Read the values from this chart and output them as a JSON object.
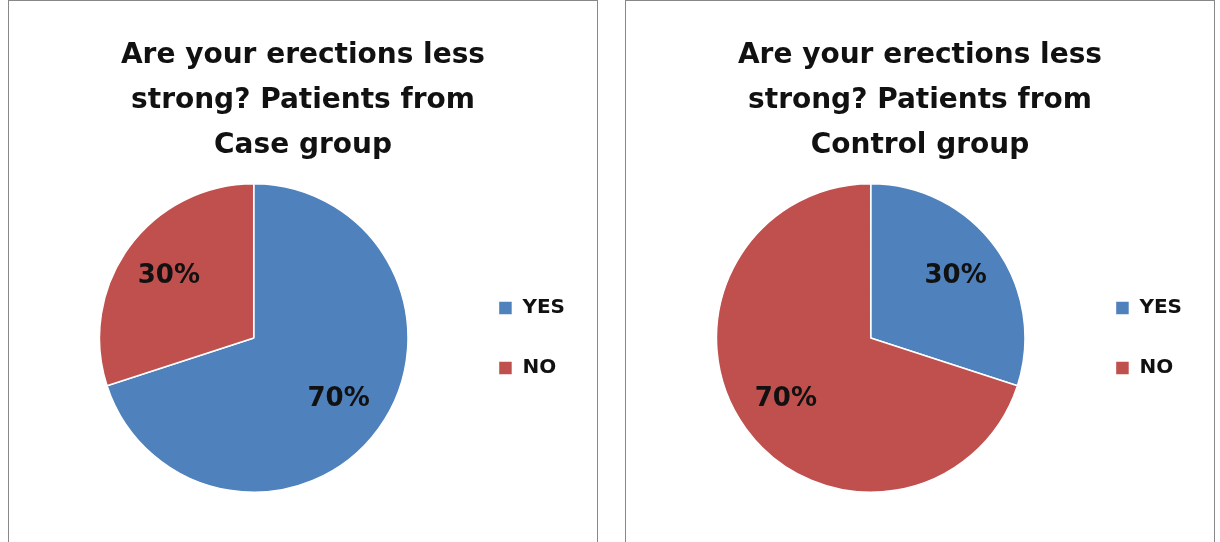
{
  "chart_data": [
    {
      "type": "pie",
      "title": "Are your erections less strong? Patients from Case group",
      "categories": [
        "YES",
        "NO"
      ],
      "values": [
        70,
        30
      ],
      "colors": [
        "#4f81bd",
        "#c0504d"
      ],
      "value_labels": [
        "70%",
        "30%"
      ],
      "legend": "right"
    },
    {
      "type": "pie",
      "title": "Are your erections less strong? Patients from Control group",
      "categories": [
        "YES",
        "NO"
      ],
      "values": [
        30,
        70
      ],
      "colors": [
        "#4f81bd",
        "#c0504d"
      ],
      "value_labels": [
        "30%",
        "70%"
      ],
      "legend": "right"
    }
  ]
}
